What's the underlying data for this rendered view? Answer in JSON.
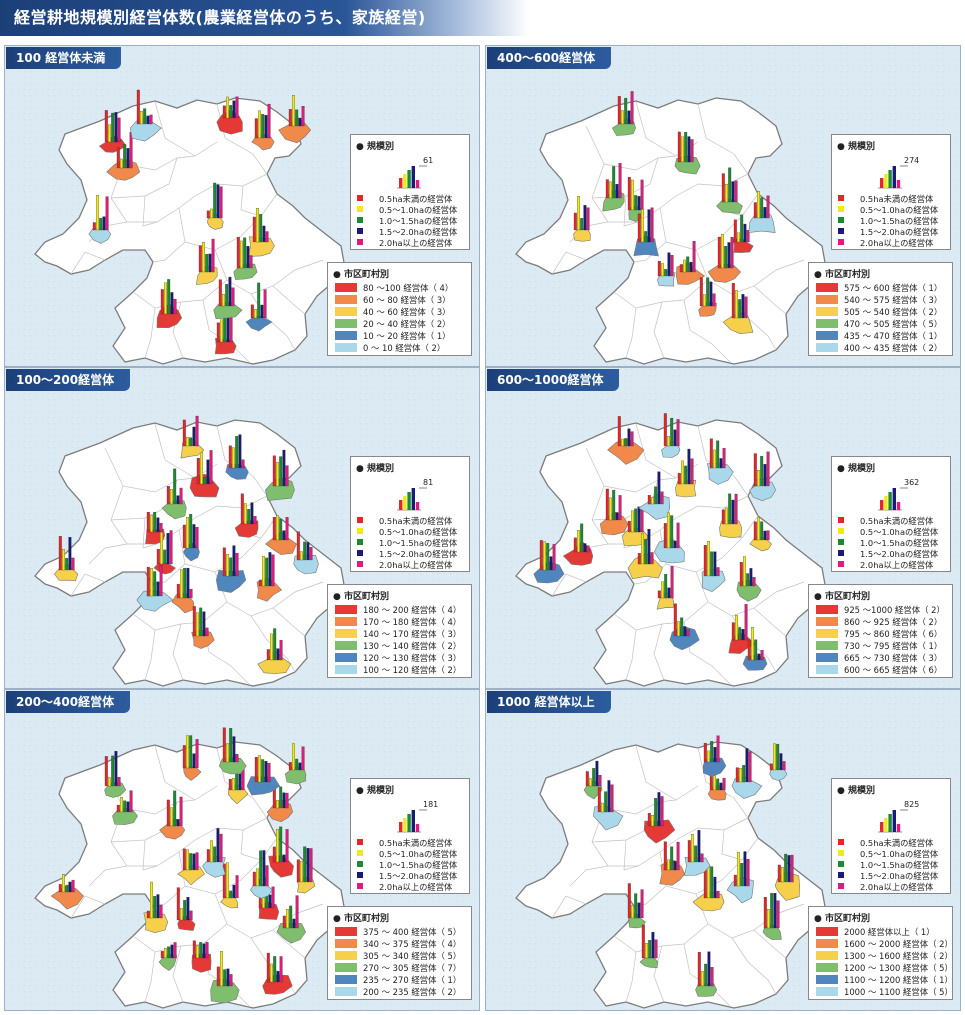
{
  "title": "経営耕地規模別経営体数(農業経営体のうち、家族経営)",
  "colors": {
    "size": [
      "#e52629",
      "#f0ea19",
      "#1a8b33",
      "#1a1a7a",
      "#e3197e"
    ],
    "muni": [
      "#e53935",
      "#f0894a",
      "#f6d04a",
      "#7fbe6c",
      "#4f86bd",
      "#a9d8ea"
    ]
  },
  "size_legend": {
    "title": "規模別",
    "items": [
      "0.5ha未満の経営体",
      "0.5～1.0haの経営体",
      "1.0～1.5haの経営体",
      "1.5～2.0haの経営体",
      "2.0ha以上の経営体"
    ]
  },
  "muni_legend_title": "市区町村別",
  "panels": [
    {
      "title": "100 経営体未満",
      "scale_value": "61",
      "ranges": [
        {
          "label": "80 ～100 経営体",
          "count": "4"
        },
        {
          "label": "60 ～ 80 経営体",
          "count": "3"
        },
        {
          "label": "40 ～ 60 経営体",
          "count": "3"
        },
        {
          "label": "20 ～ 40 経営体",
          "count": "2"
        },
        {
          "label": "10 ～ 20 経営体",
          "count": "1"
        },
        {
          "label": "0 ～ 10 経営体",
          "count": "2"
        }
      ]
    },
    {
      "title": "400～600経営体",
      "scale_value": "274",
      "ranges": [
        {
          "label": "575 ～ 600 経営体",
          "count": "1"
        },
        {
          "label": "540 ～ 575 経営体",
          "count": "3"
        },
        {
          "label": "505 ～ 540 経営体",
          "count": "2"
        },
        {
          "label": "470 ～ 505 経営体",
          "count": "5"
        },
        {
          "label": "435 ～ 470 経営体",
          "count": "1"
        },
        {
          "label": "400 ～ 435 経営体",
          "count": "2"
        }
      ]
    },
    {
      "title": "100～200経営体",
      "scale_value": "81",
      "ranges": [
        {
          "label": "180 ～ 200 経営体",
          "count": "4"
        },
        {
          "label": "170 ～ 180 経営体",
          "count": "4"
        },
        {
          "label": "140 ～ 170 経営体",
          "count": "3"
        },
        {
          "label": "130 ～ 140 経営体",
          "count": "2"
        },
        {
          "label": "120 ～ 130 経営体",
          "count": "3"
        },
        {
          "label": "100 ～ 120 経営体",
          "count": "2"
        }
      ]
    },
    {
      "title": "600～1000経営体",
      "scale_value": "362",
      "ranges": [
        {
          "label": "925 ～1000 経営体",
          "count": "2"
        },
        {
          "label": "860 ～ 925 経営体",
          "count": "2"
        },
        {
          "label": "795 ～ 860 経営体",
          "count": "6"
        },
        {
          "label": "730 ～ 795 経営体",
          "count": "1"
        },
        {
          "label": "665 ～ 730 経営体",
          "count": "3"
        },
        {
          "label": "600 ～ 665 経営体",
          "count": "6"
        }
      ]
    },
    {
      "title": "200～400経営体",
      "scale_value": "181",
      "ranges": [
        {
          "label": "375 ～ 400 経営体",
          "count": "5"
        },
        {
          "label": "340 ～ 375 経営体",
          "count": "4"
        },
        {
          "label": "305 ～ 340 経営体",
          "count": "5"
        },
        {
          "label": "270 ～ 305 経営体",
          "count": "7"
        },
        {
          "label": "235 ～ 270 経営体",
          "count": "1"
        },
        {
          "label": "200 ～ 235 経営体",
          "count": "2"
        }
      ]
    },
    {
      "title": "1000 経営体以上",
      "scale_value": "825",
      "ranges": [
        {
          "label": "2000 経営体以上",
          "count": "1"
        },
        {
          "label": "1600 ～ 2000 経営体",
          "count": "2"
        },
        {
          "label": "1300 ～ 1600 経営体",
          "count": "2"
        },
        {
          "label": "1200 ～ 1300 経営体",
          "count": "5"
        },
        {
          "label": "1100 ～ 1200 経営体",
          "count": "1"
        },
        {
          "label": "1000 ～ 1100 経営体",
          "count": "5"
        }
      ]
    }
  ]
}
